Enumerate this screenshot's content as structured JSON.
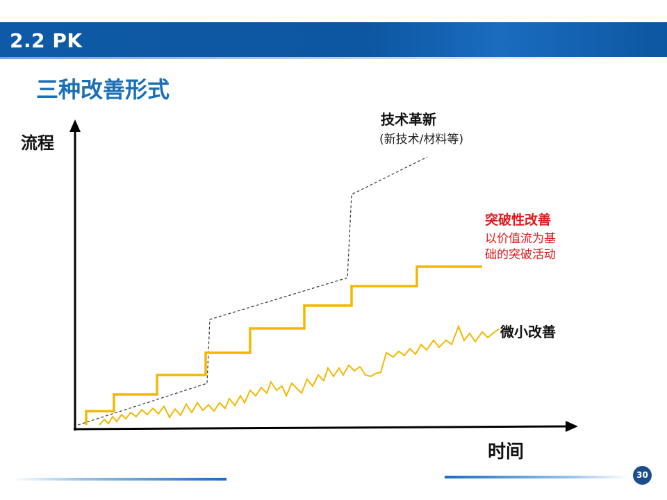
{
  "header": {
    "title": "2.2 PK"
  },
  "section_title": "三种改善形式",
  "diagram": {
    "y_axis_label": "流程",
    "x_axis_label": "时间",
    "tech_innovation": {
      "title": "技术革新",
      "subtitle": "(新技术/材料等)"
    },
    "breakthrough": {
      "title": "突破性改善",
      "subtitle_line1": "以价值流为基",
      "subtitle_line2": "础的突破活动"
    },
    "small_improvement": {
      "title": "微小改善"
    },
    "colors": {
      "axis": "#000000",
      "step_line": "#f2b800",
      "dashed_line": "#333333",
      "breakthrough_text": "#e0181b"
    }
  },
  "footer": {
    "page_number": "30"
  }
}
